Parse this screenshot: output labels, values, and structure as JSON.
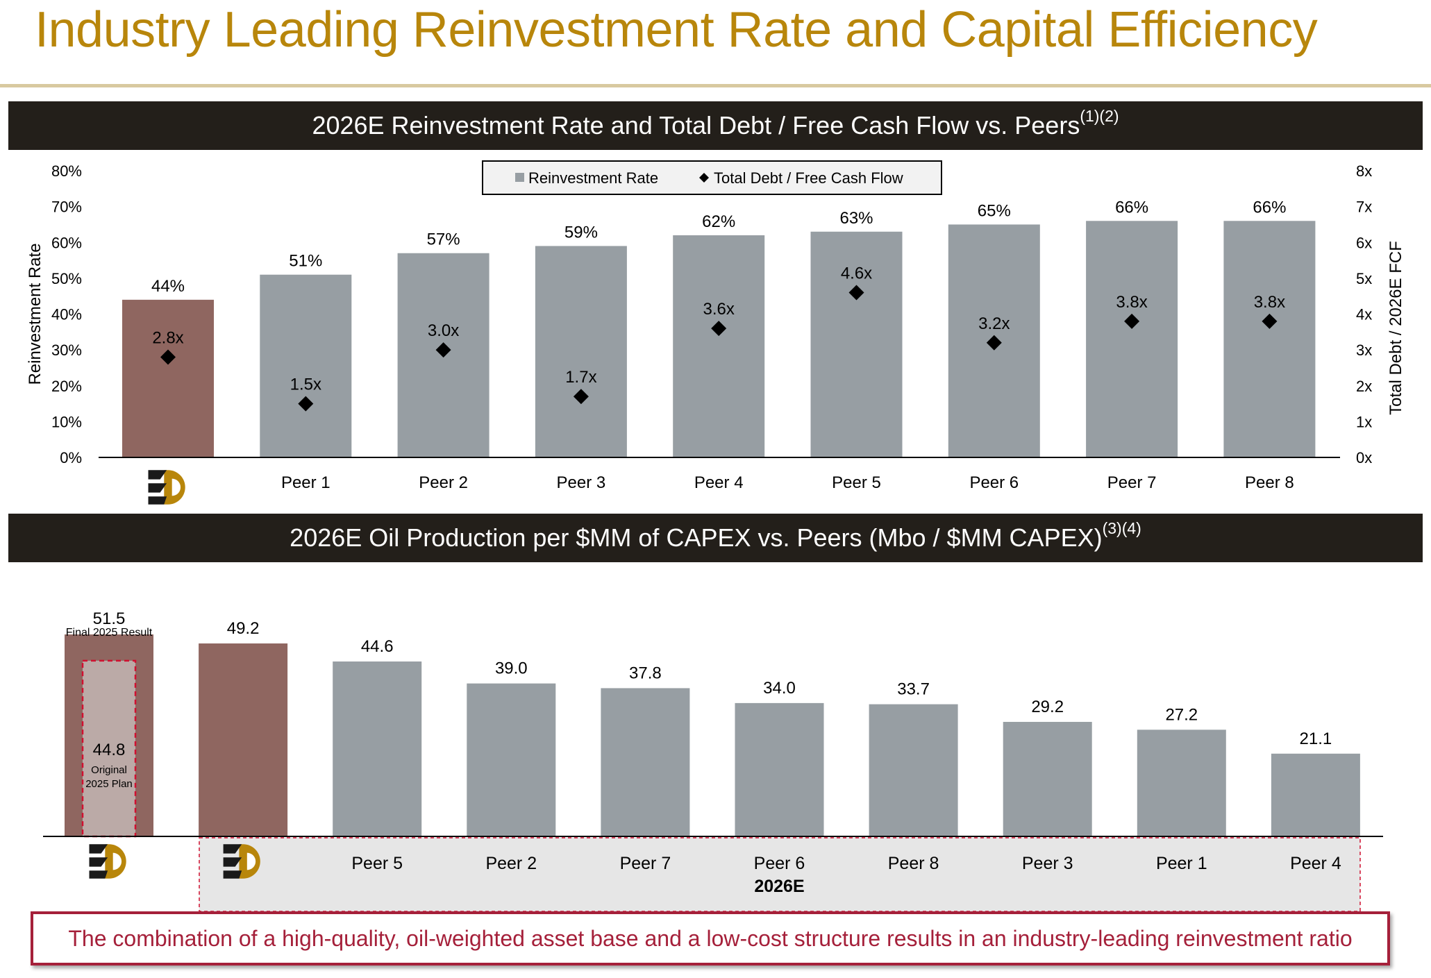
{
  "title": "Industry Leading Reinvestment Rate and Capital Efficiency",
  "colors": {
    "title": "#b8860b",
    "band": "#231f1a",
    "company_bar": "#8f6660",
    "peer_bar": "#979ea3",
    "original_plan_fill": "#bbaaa7",
    "accent_red": "#a5203a"
  },
  "sections": {
    "top": {
      "title": "2026E Reinvestment Rate and Total Debt / Free Cash Flow vs. Peers",
      "footnote": "(1)(2)"
    },
    "bottom": {
      "title": "2026E Oil Production per $MM of CAPEX vs. Peers (Mbo / $MM CAPEX)",
      "footnote": "(3)(4)"
    }
  },
  "chart_data": [
    {
      "type": "bar",
      "overlay": "scatter",
      "categories": [
        "company-logo",
        "Peer 1",
        "Peer 2",
        "Peer 3",
        "Peer 4",
        "Peer 5",
        "Peer 6",
        "Peer 7",
        "Peer 8"
      ],
      "series": [
        {
          "name": "Reinvestment Rate",
          "type": "bar",
          "axis": "left",
          "values": [
            44,
            51,
            57,
            59,
            62,
            63,
            65,
            66,
            66
          ],
          "labels": [
            "44%",
            "51%",
            "57%",
            "59%",
            "62%",
            "63%",
            "65%",
            "66%",
            "66%"
          ]
        },
        {
          "name": "Total Debt / Free Cash Flow",
          "type": "scatter",
          "marker": "diamond",
          "axis": "right",
          "values": [
            2.8,
            1.5,
            3.0,
            1.7,
            3.6,
            4.6,
            3.2,
            3.8,
            3.8
          ],
          "labels": [
            "2.8x",
            "1.5x",
            "3.0x",
            "1.7x",
            "3.6x",
            "4.6x",
            "3.2x",
            "3.8x",
            "3.8x"
          ]
        }
      ],
      "ylabel": "Reinvestment Rate",
      "y2label": "Total Debt / 2026E FCF",
      "ylim": [
        0,
        80
      ],
      "y2lim": [
        0,
        8
      ],
      "yticks": [
        "0%",
        "10%",
        "20%",
        "30%",
        "40%",
        "50%",
        "60%",
        "70%",
        "80%"
      ],
      "y2ticks": [
        "0x",
        "1x",
        "2x",
        "3x",
        "4x",
        "5x",
        "6x",
        "7x",
        "8x"
      ],
      "legend": "top-center",
      "grid": false
    },
    {
      "type": "bar",
      "categories": [
        "company-logo",
        "company-logo",
        "Peer 5",
        "Peer 2",
        "Peer 7",
        "Peer 6",
        "Peer 8",
        "Peer 3",
        "Peer 1",
        "Peer 4"
      ],
      "values": [
        51.5,
        49.2,
        44.6,
        39.0,
        37.8,
        34.0,
        33.7,
        29.2,
        27.2,
        21.1
      ],
      "labels": [
        "51.5",
        "49.2",
        "44.6",
        "39.0",
        "37.8",
        "34.0",
        "33.7",
        "29.2",
        "27.2",
        "21.1"
      ],
      "first_bar_note": "Final 2025 Result",
      "original_plan": {
        "value": 44.8,
        "label": "44.8",
        "note_line1": "Original",
        "note_line2": "2025 Plan"
      },
      "group_label": "2026E",
      "ylim": [
        0,
        60
      ],
      "grid": false
    }
  ],
  "footer": "The combination of a high-quality, oil-weighted asset base and a low-cost structure results in an industry-leading reinvestment ratio"
}
